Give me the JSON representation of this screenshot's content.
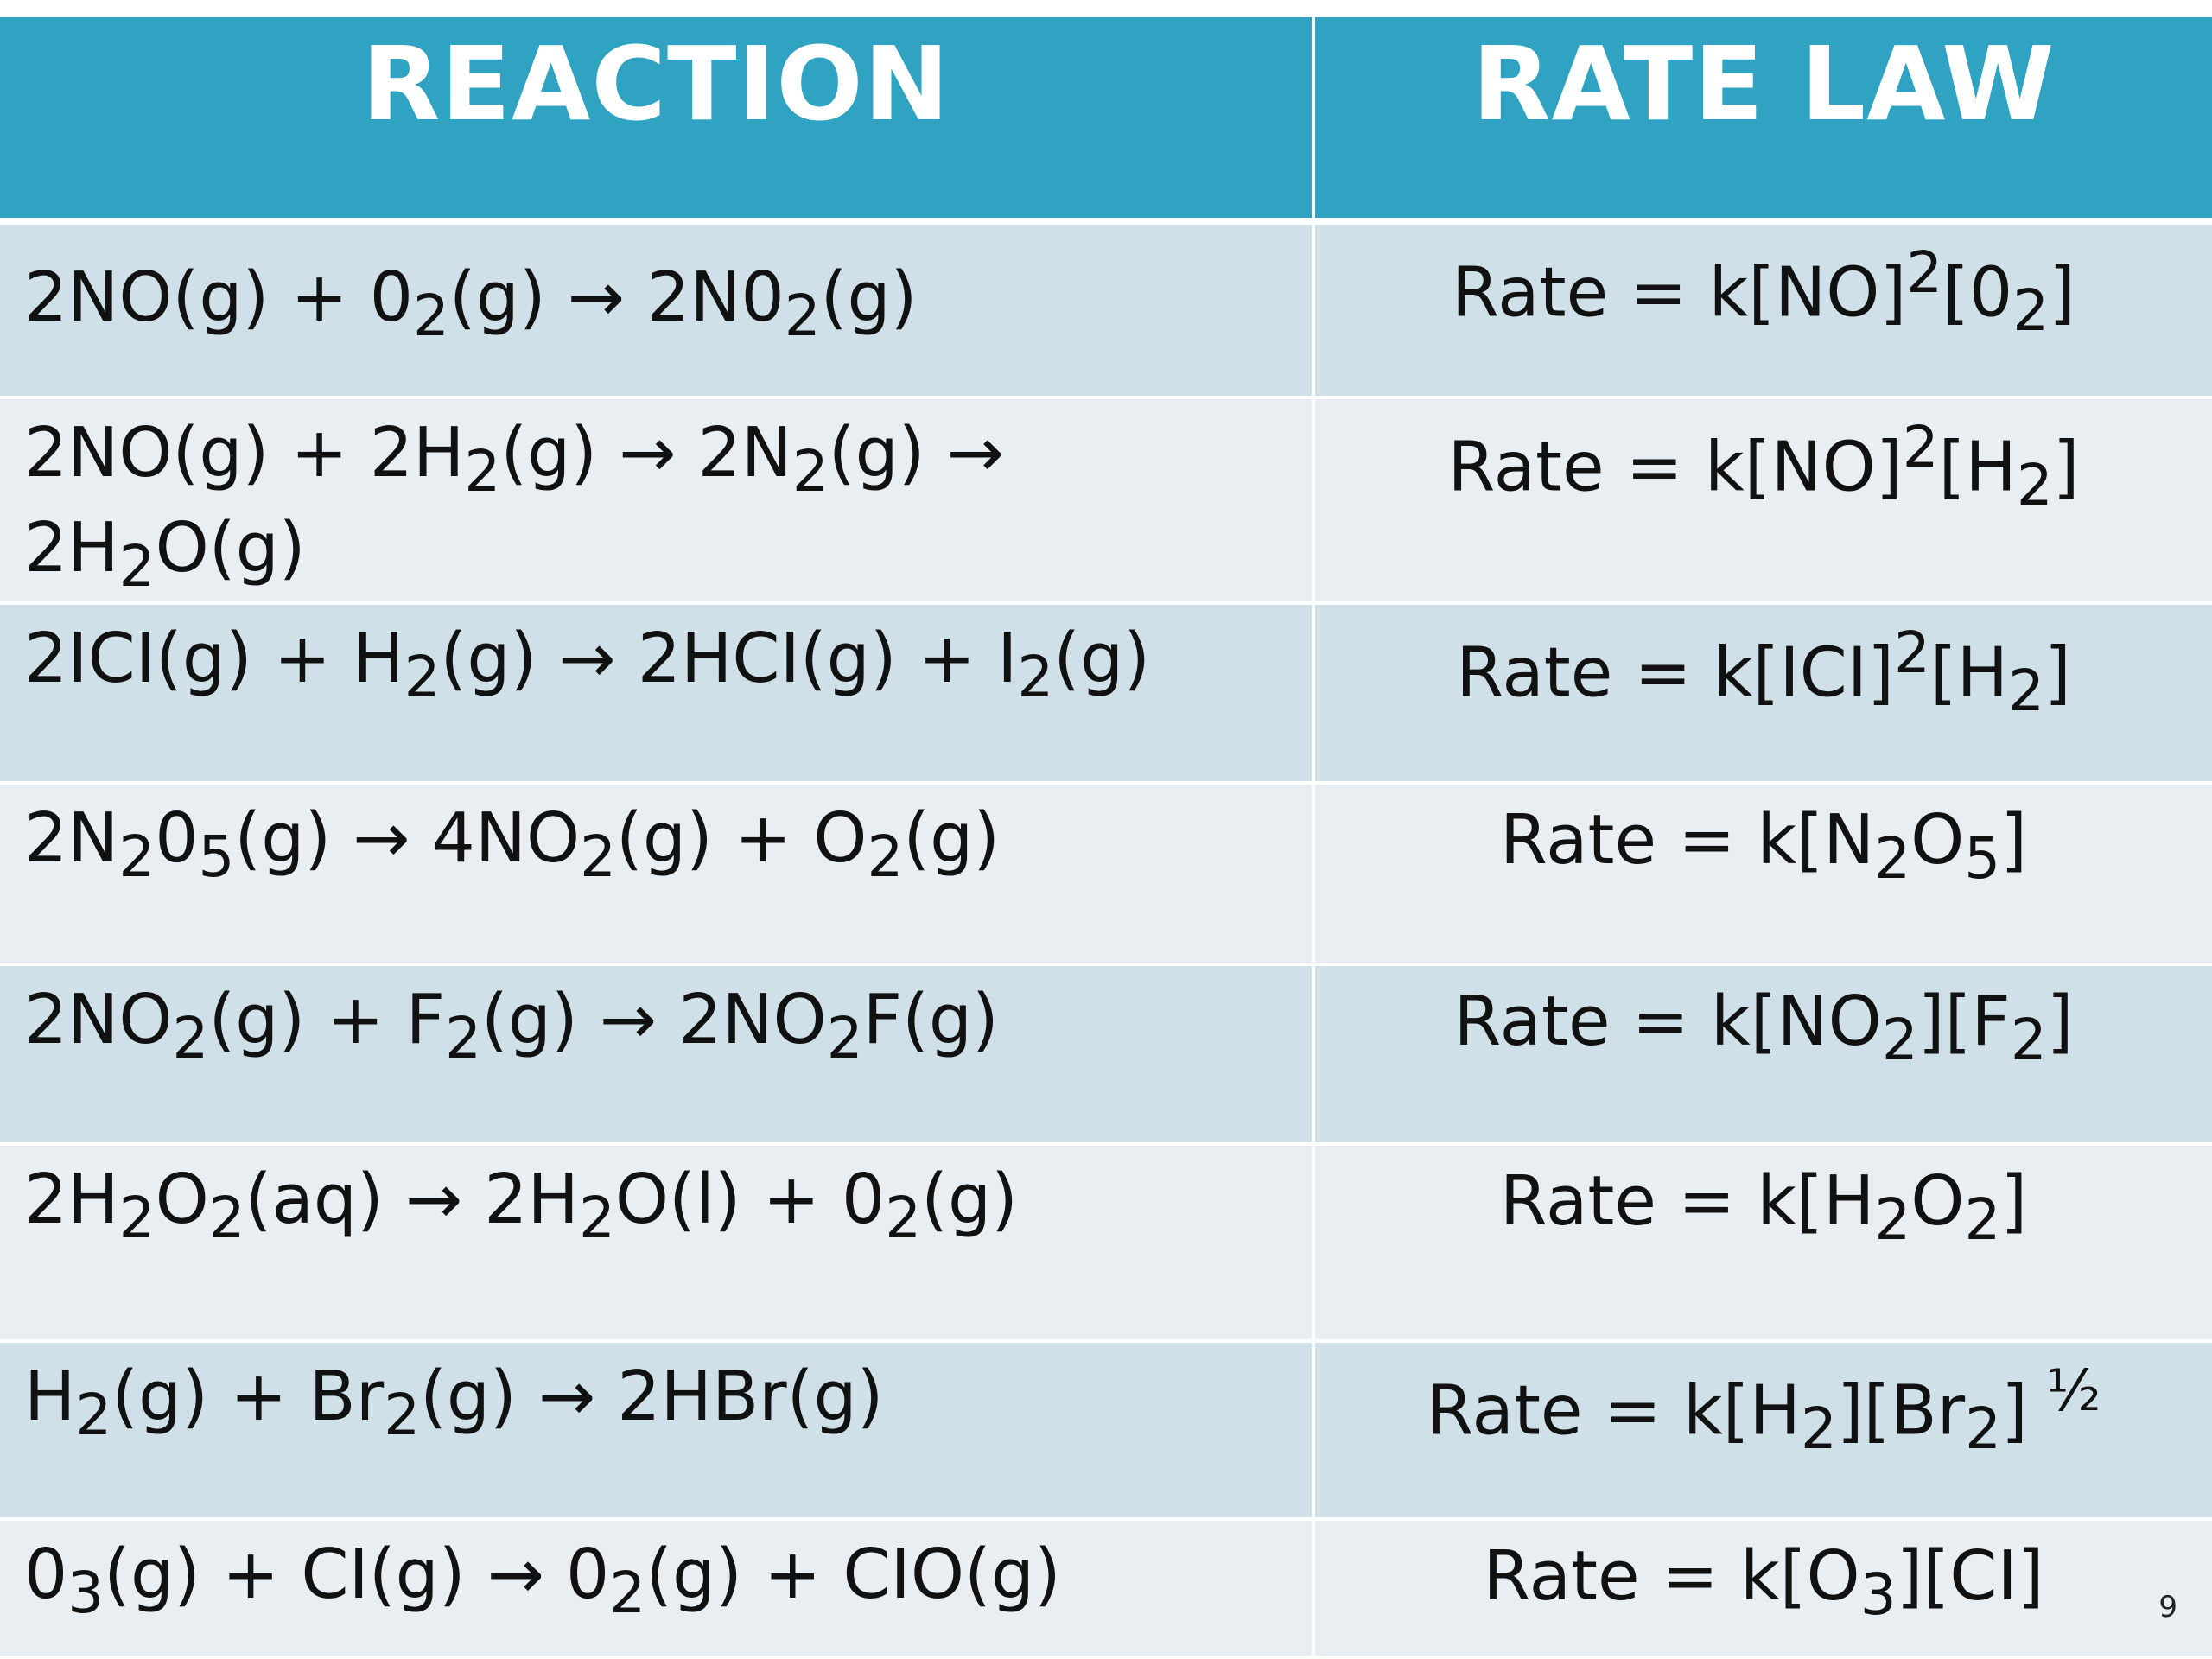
{
  "header": {
    "reaction": "REACTION",
    "rate_law": "RATE LAW"
  },
  "rows": [
    {
      "reaction": "2NO(g) +  0<sub>2</sub>(g) → 2N0<sub>2</sub>(g)",
      "rate_law": "Rate = k[NO]<sup>2</sup>[0<sub>2</sub>]"
    },
    {
      "reaction": "2NO(g) + 2H<sub>2</sub>(g) → 2N<sub>2</sub>(g) →<br>2H<sub>2</sub>O(g)",
      "rate_law": "Rate = k[NO]<sup>2</sup>[H<sub>2</sub>]"
    },
    {
      "reaction": "2ICI(g) + H<sub>2</sub>(g) → 2HCI(g) + I<sub>2</sub>(g)",
      "rate_law": "Rate = k[ICI]<sup>2</sup>[H<sub>2</sub>]"
    },
    {
      "reaction": "2N<sub>2</sub>0<sub>5</sub>(g) → 4NO<sub>2</sub>(g) + O<sub>2</sub>(g)",
      "rate_law": "Rate = k[N<sub>2</sub>O<sub>5</sub>]"
    },
    {
      "reaction": "2NO<sub>2</sub>(g) + F<sub>2</sub>(g) → 2NO<sub>2</sub>F(g)",
      "rate_law": "Rate = k[NO<sub>2</sub>][F<sub>2</sub>]"
    },
    {
      "reaction": "2H<sub>2</sub>O<sub>2</sub>(aq) → 2H<sub>2</sub>O(l) + 0<sub>2</sub>(g)",
      "rate_law": "Rate = k[H<sub>2</sub>O<sub>2</sub>]"
    },
    {
      "reaction": "H<sub>2</sub>(g) + Br<sub>2</sub>(g) → 2HBr(g)",
      "rate_law": "Rate = k[H<sub>2</sub>][Br<sub>2</sub>]<sup> ½</sup>"
    },
    {
      "reaction": "0<sub>3</sub>(g) + CI(g) → 0<sub>2</sub>(g) + CIO(g)",
      "rate_law": "Rate = k[O<sub>3</sub>][CI]"
    }
  ],
  "page_number": "9"
}
